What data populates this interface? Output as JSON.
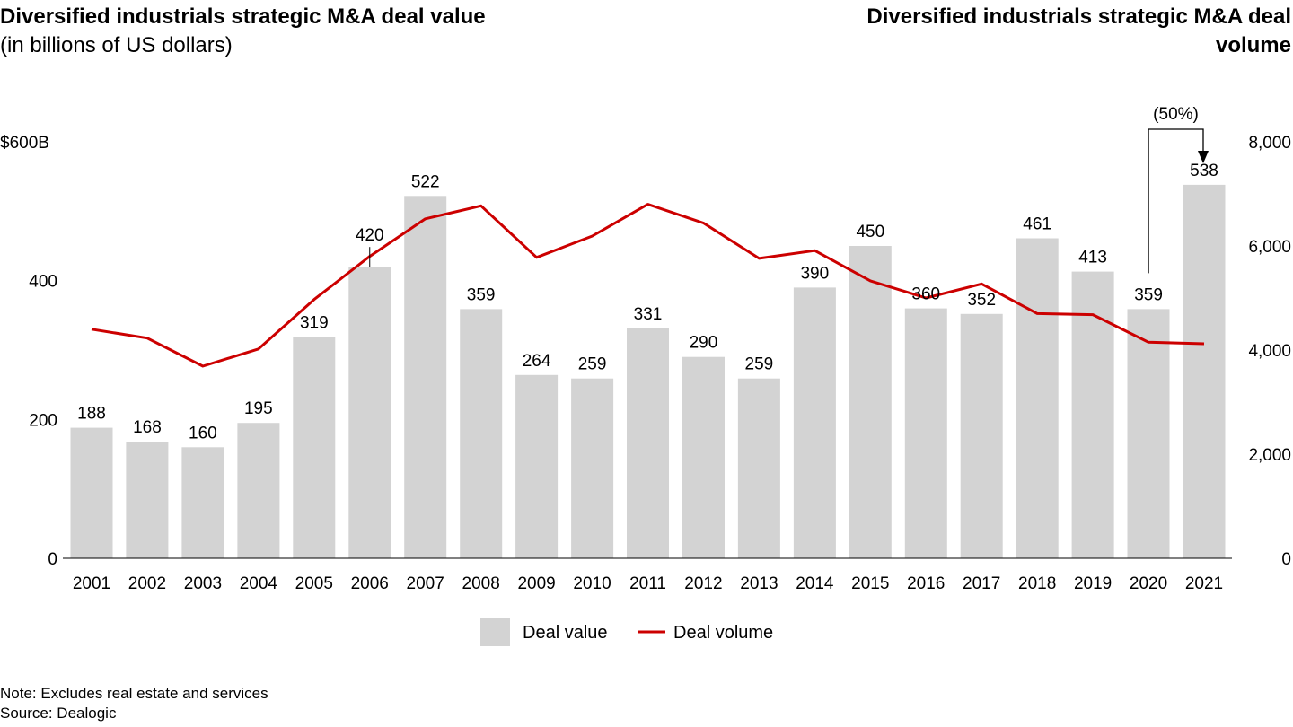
{
  "titles": {
    "left_title": "Diversified industrials strategic M&A deal value",
    "left_subtitle": "(in billions of US dollars)",
    "right_title": "Diversified industrials strategic M&A deal volume"
  },
  "footnotes": {
    "note": "Note: Excludes real estate and services",
    "source": "Source: Dealogic"
  },
  "chart_data": {
    "type": "bar",
    "categories": [
      "2001",
      "2002",
      "2003",
      "2004",
      "2005",
      "2006",
      "2007",
      "2008",
      "2009",
      "2010",
      "2011",
      "2012",
      "2013",
      "2014",
      "2015",
      "2016",
      "2017",
      "2018",
      "2019",
      "2020",
      "2021"
    ],
    "series": [
      {
        "name": "Deal value",
        "type": "bar",
        "axis": "left",
        "color": "#d3d3d3",
        "values": [
          188,
          168,
          160,
          195,
          319,
          420,
          522,
          359,
          264,
          259,
          331,
          290,
          259,
          390,
          450,
          360,
          352,
          461,
          413,
          359,
          538
        ]
      },
      {
        "name": "Deal volume",
        "type": "line",
        "axis": "right",
        "color": "#cc0000",
        "values": [
          4400,
          4230,
          3690,
          4020,
          4970,
          5800,
          6520,
          6770,
          5780,
          6190,
          6800,
          6440,
          5760,
          5910,
          5330,
          5000,
          5270,
          4700,
          4680,
          4150,
          4120
        ]
      }
    ],
    "left_axis": {
      "ylim": [
        0,
        600
      ],
      "ticks": [
        "0",
        "200",
        "400",
        "$600B"
      ],
      "tick_values": [
        0,
        200,
        400,
        600
      ]
    },
    "right_axis": {
      "ylim": [
        0,
        8000
      ],
      "ticks": [
        "0",
        "2,000",
        "4,000",
        "6,000",
        "8,000"
      ],
      "tick_values": [
        0,
        2000,
        4000,
        6000,
        8000
      ]
    },
    "annotation": {
      "text": "(50%)",
      "from": "2020",
      "to": "2021"
    },
    "legend": {
      "position": "bottom-center",
      "items": [
        "Deal value",
        "Deal volume"
      ]
    },
    "grid": false
  }
}
